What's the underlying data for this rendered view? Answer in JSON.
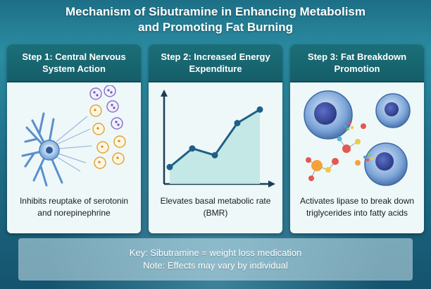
{
  "title": {
    "line1": "Mechanism of Sibutramine in Enhancing Metabolism",
    "line2": "and Promoting Fat Burning"
  },
  "steps": [
    {
      "title_line1": "Step 1: Central Nervous",
      "title_line2": "System Action",
      "description_line1": "Inhibits reuptake of serotonin",
      "description_line2": "and norepinephrine",
      "illustration": "neuron-with-neurotransmitters"
    },
    {
      "title_line1": "Step 2: Increased Energy",
      "title_line2": "Expenditure",
      "description_line1": "Elevates basal metabolic rate",
      "description_line2": "(BMR)",
      "illustration": "rising-line-chart"
    },
    {
      "title_line1": "Step 3: Fat Breakdown",
      "title_line2": "Promotion",
      "description_line1": "Activates lipase to break down",
      "description_line2": "triglycerides into fatty acids",
      "illustration": "fat-cells-and-molecules"
    }
  ],
  "chart_data": {
    "type": "line",
    "x": [
      1,
      2,
      3,
      4,
      5
    ],
    "y": [
      1.0,
      2.1,
      1.7,
      3.6,
      4.4
    ],
    "title": "",
    "xlabel": "",
    "ylabel": "",
    "ylim": [
      0,
      5
    ],
    "grid": false
  },
  "key": {
    "line1": "Key: Sibutramine = weight loss medication",
    "line2": "Note: Effects may vary by individual"
  },
  "colors": {
    "header": "#1b6f78",
    "panel": "#eef8f9",
    "neuron": "#6aa0d8",
    "line": "#1f5f87",
    "area": "#bfe6e2"
  }
}
